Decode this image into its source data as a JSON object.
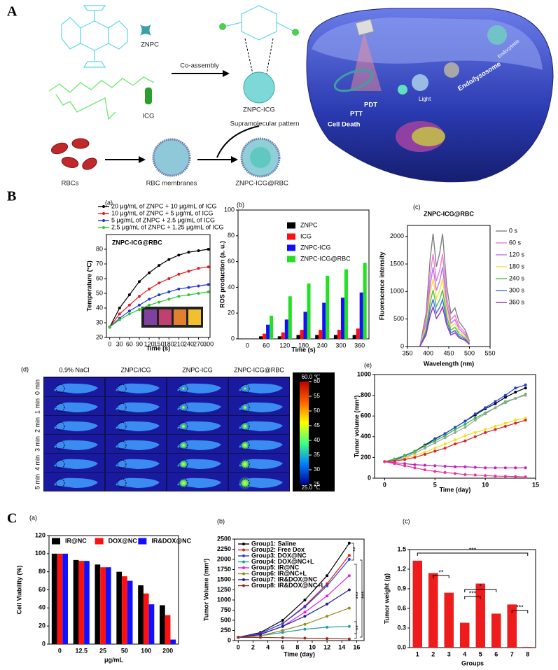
{
  "schematic": {
    "panel_label": "A",
    "labels": {
      "znpc": "ZNPC",
      "icg": "ICG",
      "co_assembly": "Co-assembly",
      "znpc_icg": "ZNPC-ICG",
      "supramolecular": "Supramolecular pattern",
      "rbcs": "RBCs",
      "rbc_membranes": "RBC membranes",
      "znpc_icg_rbc": "ZNPC-ICG@RBC",
      "pdt": "PDT",
      "ptt": "PTT",
      "cell_death": "Cell Death",
      "light": "Light",
      "endo": "Endo/lysosome",
      "endocytosis": "Endocytosis"
    }
  },
  "panel_b_label": "B",
  "panel_c_label": "C",
  "thermal_panel": {
    "panel_label": "(d)",
    "columns": [
      "0.9% NaCl",
      "ZNPC/ICG",
      "ZNPC-ICG",
      "ZNPC-ICG@RBC"
    ],
    "rows": [
      "0 min",
      "1 min",
      "2 min",
      "3 min",
      "4 min",
      "5 min"
    ],
    "clim": [
      25,
      60
    ],
    "cbar_ticks": [
      60,
      55,
      50,
      45,
      40,
      35,
      30,
      25
    ],
    "cbar_max_label": "60.0 ℃",
    "cbar_min_label": "25.0 ℃"
  },
  "chart_data": [
    {
      "type": "line",
      "panel_label": "(a)",
      "title": "ZNPC-ICG@RBC",
      "xlabel": "Time (s)",
      "ylabel": "Temperature (°C)",
      "x": [
        0,
        30,
        60,
        90,
        120,
        150,
        180,
        210,
        240,
        270,
        300
      ],
      "xlim": [
        -10,
        305
      ],
      "xticks": [
        0,
        30,
        60,
        90,
        120,
        150,
        180,
        210,
        240,
        270,
        300
      ],
      "ylim": [
        20,
        90
      ],
      "yticks": [
        20,
        30,
        40,
        50,
        60,
        70,
        80
      ],
      "markers": true,
      "legend": "above",
      "series": [
        {
          "name": "20 μg/mL of ZNPC + 10 μg/mL of ICG",
          "color": "#000000",
          "values": [
            27,
            40,
            49,
            58,
            64,
            69,
            73,
            76,
            78,
            79,
            80
          ]
        },
        {
          "name": "10 μg/mL of ZNPC + 5 μg/mL of ICG",
          "color": "#e8191c",
          "values": [
            27,
            36,
            42,
            48,
            53,
            57,
            60,
            63,
            65,
            67,
            68
          ]
        },
        {
          "name": "5 μg/mL of ZNPC + 2.5 μg/mL of ICG",
          "color": "#2436d8",
          "values": [
            27,
            33,
            38,
            42,
            46,
            49,
            51,
            53,
            54,
            55,
            56
          ]
        },
        {
          "name": "2.5 μg/mL of ZNPC + 1.25 μg/mL of ICG",
          "color": "#2ec92e",
          "values": [
            27,
            32,
            36,
            39,
            42,
            44,
            46,
            48,
            49,
            50,
            51
          ]
        }
      ]
    },
    {
      "type": "bar",
      "panel_label": "(b)",
      "xlabel": "Time (s)",
      "ylabel": "ROS production (a. u.)",
      "categories": [
        "0",
        "60",
        "120",
        "180",
        "240",
        "300",
        "360"
      ],
      "ylim": [
        0,
        100
      ],
      "yticks": [
        0,
        20,
        40,
        60,
        80,
        100
      ],
      "legend": "upper center",
      "series": [
        {
          "name": "ZNPC",
          "color": "#000000",
          "values": [
            0,
            2,
            2,
            3,
            3,
            3,
            3
          ]
        },
        {
          "name": "ICG",
          "color": "#ff1010",
          "values": [
            0,
            4,
            5,
            7,
            7,
            7,
            8
          ]
        },
        {
          "name": "ZNPC-ICG",
          "color": "#1010ff",
          "values": [
            0,
            11,
            15,
            21,
            28,
            32,
            36
          ]
        },
        {
          "name": "ZNPC-ICG@RBC",
          "color": "#22e022",
          "values": [
            0,
            18,
            33,
            43,
            49,
            54,
            59
          ]
        }
      ]
    },
    {
      "type": "line",
      "panel_label": "(c)",
      "title": "ZNPC-ICG@RBC",
      "xlabel": "Wavelength (nm)",
      "ylabel": "Fluorescence intensity",
      "x": [
        380,
        395,
        405,
        412,
        420,
        428,
        435,
        445,
        455,
        465,
        475,
        490,
        500
      ],
      "xlim": [
        350,
        550
      ],
      "xticks": [
        350,
        400,
        450,
        500,
        550
      ],
      "ylim": [
        0,
        2200
      ],
      "yticks": [
        0,
        500,
        1000,
        1500,
        2000
      ],
      "markers": false,
      "legend": "right",
      "series": [
        {
          "name": "0 s",
          "color": "#808080",
          "values": [
            0,
            600,
            1600,
            2050,
            1450,
            1700,
            2050,
            1100,
            600,
            700,
            450,
            300,
            100
          ]
        },
        {
          "name": "60 s",
          "color": "#f07ad8",
          "values": [
            0,
            490,
            1310,
            1680,
            1190,
            1390,
            1680,
            900,
            490,
            570,
            370,
            250,
            80
          ]
        },
        {
          "name": "120 s",
          "color": "#c070f0",
          "values": [
            0,
            420,
            1120,
            1440,
            1020,
            1190,
            1440,
            770,
            420,
            490,
            320,
            210,
            70
          ]
        },
        {
          "name": "180 s",
          "color": "#f0e040",
          "values": [
            0,
            360,
            960,
            1230,
            870,
            1020,
            1230,
            660,
            360,
            420,
            270,
            180,
            60
          ]
        },
        {
          "name": "240 s",
          "color": "#50c040",
          "values": [
            0,
            300,
            800,
            1030,
            730,
            850,
            1030,
            550,
            300,
            350,
            230,
            150,
            50
          ]
        },
        {
          "name": "300 s",
          "color": "#4070f0",
          "values": [
            0,
            250,
            670,
            860,
            610,
            710,
            860,
            460,
            250,
            290,
            190,
            130,
            40
          ]
        },
        {
          "name": "360 s",
          "color": "#9030c0",
          "values": [
            0,
            210,
            560,
            720,
            510,
            600,
            720,
            390,
            210,
            250,
            160,
            110,
            40
          ]
        }
      ]
    },
    {
      "type": "line",
      "panel_label": "(e)",
      "xlabel": "Time (day)",
      "ylabel": "Tumor volume (mm³)",
      "x": [
        0,
        1,
        2,
        3,
        4,
        5,
        6,
        7,
        8,
        9,
        10,
        11,
        12,
        13,
        14
      ],
      "xlim": [
        -1,
        15
      ],
      "xticks": [
        0,
        5,
        10,
        15
      ],
      "ylim": [
        0,
        1000
      ],
      "yticks": [
        0,
        200,
        400,
        600,
        800,
        1000
      ],
      "markers": true,
      "series": [
        {
          "color": "#000000",
          "values": [
            160,
            180,
            220,
            260,
            320,
            380,
            430,
            490,
            550,
            610,
            670,
            720,
            780,
            830,
            870
          ]
        },
        {
          "color": "#2040e0",
          "values": [
            160,
            175,
            215,
            255,
            315,
            375,
            430,
            490,
            550,
            620,
            680,
            740,
            800,
            870,
            900
          ]
        },
        {
          "color": "#30c030",
          "values": [
            160,
            185,
            220,
            260,
            310,
            360,
            410,
            470,
            520,
            580,
            630,
            680,
            730,
            770,
            810
          ]
        },
        {
          "color": "#a0a0a0",
          "values": [
            160,
            170,
            200,
            240,
            290,
            340,
            390,
            440,
            490,
            560,
            620,
            680,
            740,
            770,
            800
          ]
        },
        {
          "color": "#f0e020",
          "values": [
            160,
            165,
            190,
            220,
            250,
            290,
            330,
            370,
            410,
            440,
            470,
            500,
            530,
            560,
            580
          ]
        },
        {
          "color": "#e02020",
          "values": [
            160,
            165,
            180,
            200,
            230,
            260,
            290,
            330,
            360,
            400,
            440,
            470,
            500,
            530,
            560
          ]
        },
        {
          "color": "#c020c0",
          "values": [
            160,
            150,
            140,
            130,
            125,
            120,
            115,
            110,
            110,
            105,
            100,
            100,
            100,
            100,
            100
          ]
        },
        {
          "color": "#f03090",
          "values": [
            160,
            140,
            120,
            100,
            80,
            65,
            55,
            45,
            35,
            30,
            25,
            20,
            18,
            15,
            12
          ]
        }
      ]
    },
    {
      "type": "bar",
      "panel_label": "(a)",
      "xlabel": "μg/mL",
      "ylabel": "Cell Viability (%)",
      "categories": [
        "0",
        "12.5",
        "25",
        "50",
        "100",
        "200"
      ],
      "ylim": [
        0,
        120
      ],
      "yticks": [
        0,
        20,
        40,
        60,
        80,
        100,
        120
      ],
      "legend": "top",
      "series": [
        {
          "name": "IR@NC",
          "color": "#000000",
          "values": [
            100,
            93,
            88,
            80,
            65,
            43
          ]
        },
        {
          "name": "DOX@NC",
          "color": "#ff1010",
          "values": [
            100,
            92,
            85,
            75,
            56,
            32
          ]
        },
        {
          "name": "IR&DOX@NC",
          "color": "#1010ff",
          "values": [
            100,
            92,
            85,
            70,
            44,
            5
          ]
        }
      ]
    },
    {
      "type": "line",
      "panel_label": "(b)",
      "xlabel": "Time (day)",
      "ylabel": "Tumor Volume (mm³)",
      "x": [
        0,
        3,
        6,
        9,
        12,
        15
      ],
      "xlim": [
        -0.5,
        17
      ],
      "xticks": [
        0,
        2,
        4,
        6,
        8,
        10,
        12,
        14,
        16
      ],
      "ylim": [
        0,
        2500
      ],
      "yticks": [
        0,
        250,
        500,
        750,
        1000,
        1250,
        1500,
        1750,
        2000,
        2250,
        2500
      ],
      "markers": true,
      "legend": "upper left",
      "annotations": [
        "**",
        "***",
        "***",
        "**"
      ],
      "series": [
        {
          "name": "Group1: Saline",
          "color": "#000000",
          "values": [
            80,
            200,
            500,
            1000,
            1600,
            2400
          ]
        },
        {
          "name": "Group2: Free Dox",
          "color": "#e02020",
          "values": [
            80,
            180,
            420,
            850,
            1400,
            2100
          ]
        },
        {
          "name": "Group3: DOX@NC",
          "color": "#2040e0",
          "values": [
            80,
            180,
            420,
            830,
            1350,
            2000
          ]
        },
        {
          "name": "Group4: DOX@NC+L",
          "color": "#20a0a0",
          "values": [
            80,
            120,
            200,
            280,
            330,
            350
          ]
        },
        {
          "name": "Group5: IR@NC",
          "color": "#e020e0",
          "values": [
            80,
            160,
            350,
            700,
            1100,
            1600
          ]
        },
        {
          "name": "Group6: IR@NC+L",
          "color": "#909020",
          "values": [
            80,
            120,
            250,
            400,
            600,
            800
          ]
        },
        {
          "name": "Group7: IR&DOX@NC",
          "color": "#202090",
          "values": [
            80,
            150,
            350,
            600,
            900,
            1250
          ]
        },
        {
          "name": "Group8: IR&DOX@NC+L",
          "color": "#903020",
          "values": [
            80,
            80,
            70,
            60,
            50,
            40
          ]
        }
      ]
    },
    {
      "type": "bar",
      "panel_label": "(c)",
      "xlabel": "Groups",
      "ylabel": "Tumor weight (g)",
      "categories": [
        "1",
        "2",
        "3",
        "4",
        "5",
        "6",
        "7",
        "8"
      ],
      "values": [
        1.33,
        1.14,
        0.84,
        0.38,
        0.98,
        0.52,
        0.66,
        0.01
      ],
      "color": "#ee1c1c",
      "ylim": [
        0,
        1.5
      ],
      "yticks": [
        {
          "value": 0,
          "label": "0.0"
        },
        0.3,
        0.6,
        0.9,
        1.2,
        1.5
      ],
      "annotations": [
        "***",
        "**",
        "*",
        "***",
        "***"
      ]
    }
  ]
}
